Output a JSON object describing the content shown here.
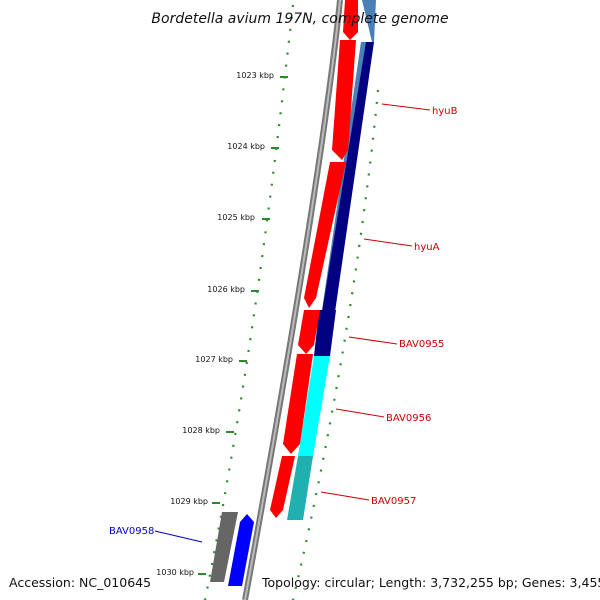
{
  "title": "Bordetella avium 197N, complete genome",
  "footer": {
    "accession": "Accession: NC_010645",
    "topology": "Topology: circular; Length: 3,732,255 bp; Genes: 3,455"
  },
  "scale_labels": [
    "1023 kbp",
    "1024 kbp",
    "1025 kbp",
    "1026 kbp",
    "1027 kbp",
    "1028 kbp",
    "1029 kbp",
    "1030 kbp"
  ],
  "gene_labels": [
    {
      "name": "hyuB",
      "color": "#cc0000"
    },
    {
      "name": "hyuA",
      "color": "#cc0000"
    },
    {
      "name": "BAV0955",
      "color": "#cc0000"
    },
    {
      "name": "BAV0956",
      "color": "#cc0000"
    },
    {
      "name": "BAV0957",
      "color": "#cc0000"
    },
    {
      "name": "BAV0958",
      "color": "#0000cc"
    }
  ],
  "colors": {
    "backbone": "#888888",
    "scale_dots": "#2a8a2a",
    "forward_gene": "#ff0000",
    "reverse_gene": "#0000ff",
    "rna_gene": "#666666",
    "steelblue": "#4a7fb8",
    "navy": "#000080",
    "cyan": "#00ffff",
    "teal": "#20b0b0"
  }
}
